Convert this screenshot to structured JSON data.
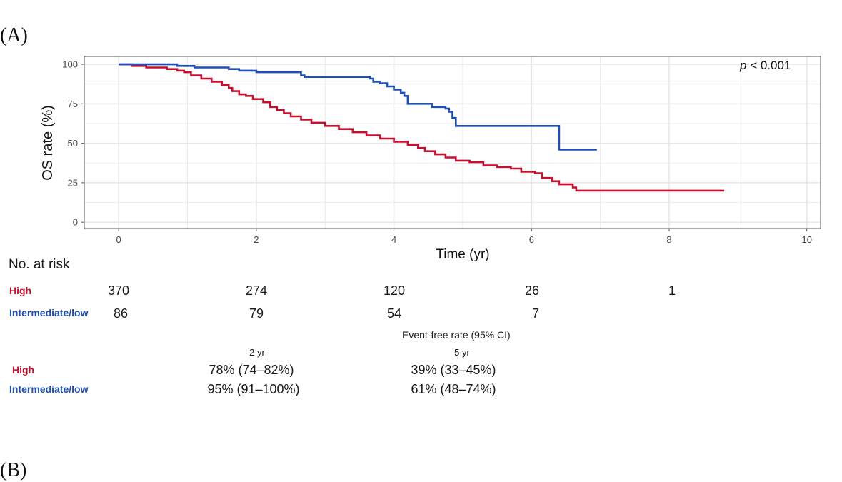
{
  "panel_label_a": "(A)",
  "panel_label_b": "(B)",
  "colors": {
    "high": "#c8102e",
    "low": "#1f4fb5",
    "grid": "#e6e6e6",
    "axis": "#555555"
  },
  "chart_data": {
    "type": "line",
    "title": "",
    "xlabel": "Time (yr)",
    "ylabel": "OS rate (%)",
    "xlim": [
      -0.5,
      10.2
    ],
    "ylim": [
      -4,
      105
    ],
    "x_ticks": [
      0,
      2,
      4,
      6,
      8,
      10
    ],
    "y_ticks": [
      0,
      25,
      50,
      75,
      100
    ],
    "grid": true,
    "annotation": {
      "prefix": "p",
      "text": " < 0.001"
    },
    "series": [
      {
        "name": "High",
        "color": "#c8102e",
        "steps": [
          [
            0,
            100
          ],
          [
            0.2,
            99
          ],
          [
            0.4,
            98
          ],
          [
            0.7,
            97
          ],
          [
            0.85,
            96
          ],
          [
            0.95,
            95
          ],
          [
            1.05,
            93
          ],
          [
            1.2,
            91
          ],
          [
            1.35,
            89
          ],
          [
            1.5,
            87
          ],
          [
            1.6,
            85
          ],
          [
            1.65,
            83
          ],
          [
            1.75,
            81
          ],
          [
            1.85,
            80
          ],
          [
            1.95,
            78
          ],
          [
            2.1,
            76
          ],
          [
            2.2,
            73
          ],
          [
            2.3,
            71
          ],
          [
            2.4,
            69
          ],
          [
            2.5,
            67
          ],
          [
            2.65,
            65
          ],
          [
            2.8,
            63
          ],
          [
            3.0,
            61
          ],
          [
            3.2,
            59
          ],
          [
            3.4,
            57
          ],
          [
            3.6,
            55
          ],
          [
            3.8,
            53
          ],
          [
            4.0,
            51
          ],
          [
            4.2,
            49
          ],
          [
            4.35,
            47
          ],
          [
            4.45,
            45
          ],
          [
            4.6,
            43
          ],
          [
            4.75,
            41
          ],
          [
            4.9,
            39
          ],
          [
            5.1,
            38
          ],
          [
            5.3,
            36
          ],
          [
            5.5,
            35
          ],
          [
            5.7,
            34
          ],
          [
            5.85,
            32
          ],
          [
            6.05,
            31
          ],
          [
            6.15,
            28
          ],
          [
            6.3,
            26
          ],
          [
            6.4,
            24
          ],
          [
            6.6,
            22
          ],
          [
            6.65,
            20
          ],
          [
            8.8,
            20
          ]
        ]
      },
      {
        "name": "Intermediate/low",
        "color": "#1f4fb5",
        "steps": [
          [
            0,
            100
          ],
          [
            0.85,
            99
          ],
          [
            1.1,
            98
          ],
          [
            1.6,
            97
          ],
          [
            1.75,
            96
          ],
          [
            2.0,
            95
          ],
          [
            2.65,
            93
          ],
          [
            2.7,
            92
          ],
          [
            3.65,
            91
          ],
          [
            3.7,
            89
          ],
          [
            3.8,
            88
          ],
          [
            3.9,
            86
          ],
          [
            4.0,
            84
          ],
          [
            4.1,
            82
          ],
          [
            4.15,
            80
          ],
          [
            4.2,
            75
          ],
          [
            4.55,
            73
          ],
          [
            4.75,
            72
          ],
          [
            4.8,
            70
          ],
          [
            4.85,
            66
          ],
          [
            4.9,
            61
          ],
          [
            6.4,
            46
          ],
          [
            6.95,
            46
          ]
        ]
      }
    ]
  },
  "risk_table": {
    "title": "No. at risk",
    "rows": [
      {
        "label": "High",
        "values": [
          "370",
          "274",
          "120",
          "26",
          "1"
        ]
      },
      {
        "label": "Intermediate/low",
        "values": [
          "86",
          "79",
          "54",
          "7"
        ]
      }
    ]
  },
  "event_free": {
    "title": "Event-free rate (95% CI)",
    "columns": [
      "2 yr",
      "5 yr"
    ],
    "rows": [
      {
        "label": "High",
        "values": [
          "78% (74–82%)",
          "39% (33–45%)"
        ]
      },
      {
        "label": "Intermediate/low",
        "values": [
          "95% (91–100%)",
          "61% (48–74%)"
        ]
      }
    ]
  }
}
